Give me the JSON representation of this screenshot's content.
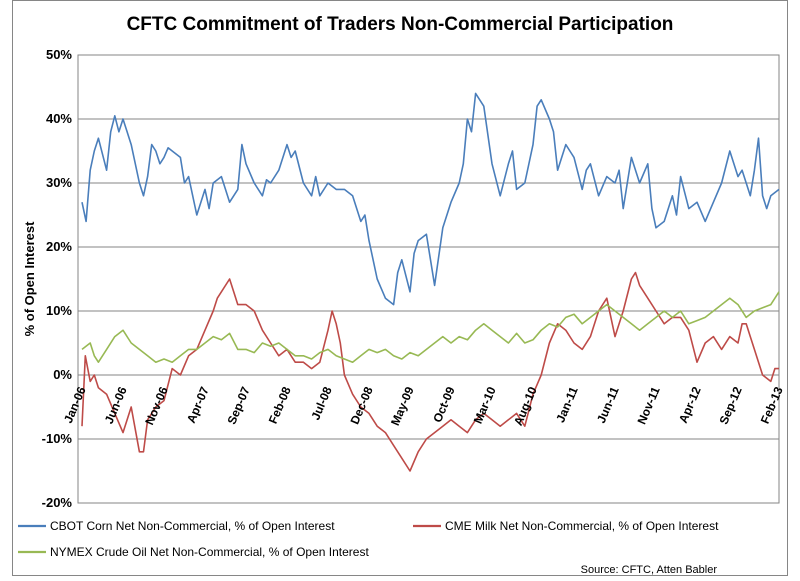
{
  "chart_data": {
    "type": "line",
    "title": "CFTC Commitment of Traders Non-Commercial Participation",
    "xlabel": "",
    "ylabel": "% of Open Interest",
    "ylim": [
      -20,
      50
    ],
    "yticks": [
      "50%",
      "40%",
      "30%",
      "20%",
      "10%",
      "0%",
      "-10%",
      "-20%"
    ],
    "ytick_values": [
      50,
      40,
      30,
      20,
      10,
      0,
      -10,
      -20
    ],
    "x_range": [
      0,
      85
    ],
    "xticks": [
      "Jan-06",
      "Jun-06",
      "Nov-06",
      "Apr-07",
      "Sep-07",
      "Feb-08",
      "Jul-08",
      "Dec-08",
      "May-09",
      "Oct-09",
      "Mar-10",
      "Aug-10",
      "Jan-11",
      "Jun-11",
      "Nov-11",
      "Apr-12",
      "Sep-12",
      "Feb-13"
    ],
    "xtick_positions": [
      0,
      5,
      10,
      15,
      20,
      25,
      30,
      35,
      40,
      45,
      50,
      55,
      60,
      65,
      70,
      75,
      80,
      85
    ],
    "grid": "horizontal",
    "legend_position": "bottom",
    "source": "Source: CFTC, Atten Babler",
    "series": [
      {
        "name": "CBOT Corn Net Non-Commercial, % of Open Interest",
        "color": "#4a7ebb",
        "x": [
          0,
          0.5,
          1,
          1.5,
          2,
          3,
          3.5,
          4,
          4.5,
          5,
          5.5,
          6,
          7,
          7.5,
          8,
          8.5,
          9,
          9.5,
          10,
          10.5,
          11,
          12,
          12.5,
          13,
          14,
          15,
          15.5,
          16,
          17,
          17.5,
          18,
          19,
          19.5,
          20,
          21,
          22,
          22.5,
          23,
          24,
          25,
          25.5,
          26,
          27,
          28,
          28.5,
          29,
          30,
          31,
          32,
          33,
          34,
          34.5,
          35,
          36,
          37,
          38,
          38.5,
          39,
          40,
          40.5,
          41,
          42,
          43,
          44,
          45,
          46,
          46.5,
          47,
          47.5,
          48,
          49,
          50,
          51,
          52,
          52.5,
          53,
          54,
          55,
          55.5,
          56,
          57,
          57.5,
          58,
          59,
          59.5,
          60,
          61,
          61.5,
          62,
          63,
          64,
          65,
          65.5,
          66,
          67,
          68,
          69,
          69.5,
          70,
          71,
          72,
          72.5,
          73,
          74,
          75,
          76,
          77,
          78,
          79,
          80,
          80.5,
          81,
          81.5,
          82,
          82.5,
          83,
          83.5,
          84,
          85
        ],
        "values": [
          27,
          24,
          32,
          35,
          37,
          32,
          38,
          40.5,
          38,
          40,
          38,
          36,
          30,
          28,
          31,
          36,
          35,
          33,
          34,
          35.5,
          35,
          34,
          30,
          31,
          25,
          29,
          26,
          30,
          31,
          29,
          27,
          29,
          36,
          33,
          30,
          28,
          30.5,
          30,
          32,
          36,
          34,
          35,
          30,
          28,
          31,
          28,
          30,
          29,
          29,
          28,
          24,
          25,
          21,
          15,
          12,
          11,
          16,
          18,
          13,
          19,
          21,
          22,
          14,
          23,
          27,
          30,
          33,
          40,
          38,
          44,
          42,
          33,
          28,
          33,
          35,
          29,
          30,
          36,
          42,
          43,
          40,
          38,
          32,
          36,
          35,
          34,
          29,
          32,
          33,
          28,
          31,
          30,
          32,
          26,
          34,
          30,
          33,
          26,
          23,
          24,
          28,
          25,
          31,
          26,
          27,
          24,
          27,
          30,
          35,
          31,
          32,
          30,
          28,
          32,
          37,
          28,
          26,
          28,
          29
        ]
      },
      {
        "name": "CME Milk Net Non-Commercial, % of Open Interest",
        "color": "#be4b48",
        "x": [
          0,
          0.4,
          1,
          1.5,
          2,
          3,
          4,
          5,
          6,
          7,
          7.5,
          8,
          8.5,
          9,
          10,
          11,
          12,
          13,
          14,
          15,
          16,
          16.5,
          17,
          18,
          18.5,
          19,
          19.5,
          20,
          21,
          22,
          23,
          24,
          25,
          26,
          27,
          28,
          29,
          30,
          30.5,
          31,
          31.5,
          32,
          33,
          34,
          35,
          36,
          37,
          38,
          39,
          40,
          41,
          42,
          43,
          44,
          45,
          46,
          47,
          48,
          49,
          50,
          51,
          52,
          53,
          54,
          55,
          56,
          57,
          58,
          59,
          60,
          61,
          62,
          63,
          64,
          65,
          66,
          67,
          67.5,
          68,
          69,
          70,
          71,
          72,
          73,
          74,
          75,
          76,
          77,
          78,
          79,
          80,
          80.5,
          81,
          81.5,
          82,
          83,
          84,
          84.5,
          85
        ],
        "values": [
          -8,
          3,
          -1,
          0,
          -2,
          -3,
          -6,
          -9,
          -5,
          -12,
          -12,
          -7,
          -6,
          -5,
          -4,
          1,
          0,
          3,
          4,
          7,
          10,
          12,
          13,
          15,
          13,
          11,
          11,
          11,
          10,
          7,
          5,
          3,
          4,
          2,
          2,
          1,
          2,
          7,
          10,
          8,
          5,
          0,
          -3,
          -5,
          -6,
          -8,
          -9,
          -11,
          -13,
          -15,
          -12,
          -10,
          -9,
          -8,
          -7,
          -8,
          -9,
          -7,
          -6,
          -7,
          -8,
          -7,
          -6,
          -8,
          -3,
          0,
          5,
          8,
          7,
          5,
          4,
          6,
          10,
          12,
          6,
          10,
          15,
          16,
          14,
          12,
          10,
          8,
          9,
          9,
          7,
          2,
          5,
          6,
          4,
          6,
          5,
          8,
          8,
          6,
          4,
          0,
          -1,
          1,
          1
        ]
      },
      {
        "name": "NYMEX Crude Oil Net Non-Commercial, % of Open Interest",
        "color": "#98b954",
        "x": [
          0,
          1,
          1.5,
          2,
          3,
          4,
          5,
          6,
          7,
          8,
          9,
          10,
          11,
          12,
          13,
          14,
          15,
          16,
          17,
          18,
          19,
          20,
          21,
          22,
          23,
          24,
          25,
          26,
          27,
          28,
          29,
          30,
          31,
          32,
          33,
          34,
          35,
          36,
          37,
          38,
          39,
          40,
          41,
          42,
          43,
          44,
          45,
          46,
          47,
          48,
          49,
          50,
          51,
          52,
          53,
          54,
          55,
          56,
          57,
          58,
          59,
          60,
          61,
          62,
          63,
          64,
          65,
          66,
          67,
          68,
          69,
          70,
          71,
          72,
          73,
          74,
          75,
          76,
          77,
          78,
          79,
          80,
          81,
          82,
          83,
          84,
          84.5,
          85
        ],
        "values": [
          4,
          5,
          3,
          2,
          4,
          6,
          7,
          5,
          4,
          3,
          2,
          2.5,
          2,
          3,
          4,
          4,
          5,
          6,
          5.5,
          6.5,
          4,
          4,
          3.5,
          5,
          4.5,
          5,
          4,
          3,
          3,
          2.5,
          3.5,
          4,
          3,
          2.5,
          2,
          3,
          4,
          3.5,
          4,
          3,
          2.5,
          3.5,
          3,
          4,
          5,
          6,
          5,
          6,
          5.5,
          7,
          8,
          7,
          6,
          5,
          6.5,
          5,
          5.5,
          7,
          8,
          7.5,
          9,
          9.5,
          8,
          9,
          10,
          11,
          10,
          9,
          8,
          7,
          8,
          9,
          10,
          9,
          10,
          8,
          8.5,
          9,
          10,
          11,
          12,
          11,
          9,
          10,
          10.5,
          11,
          12,
          13
        ]
      }
    ]
  }
}
